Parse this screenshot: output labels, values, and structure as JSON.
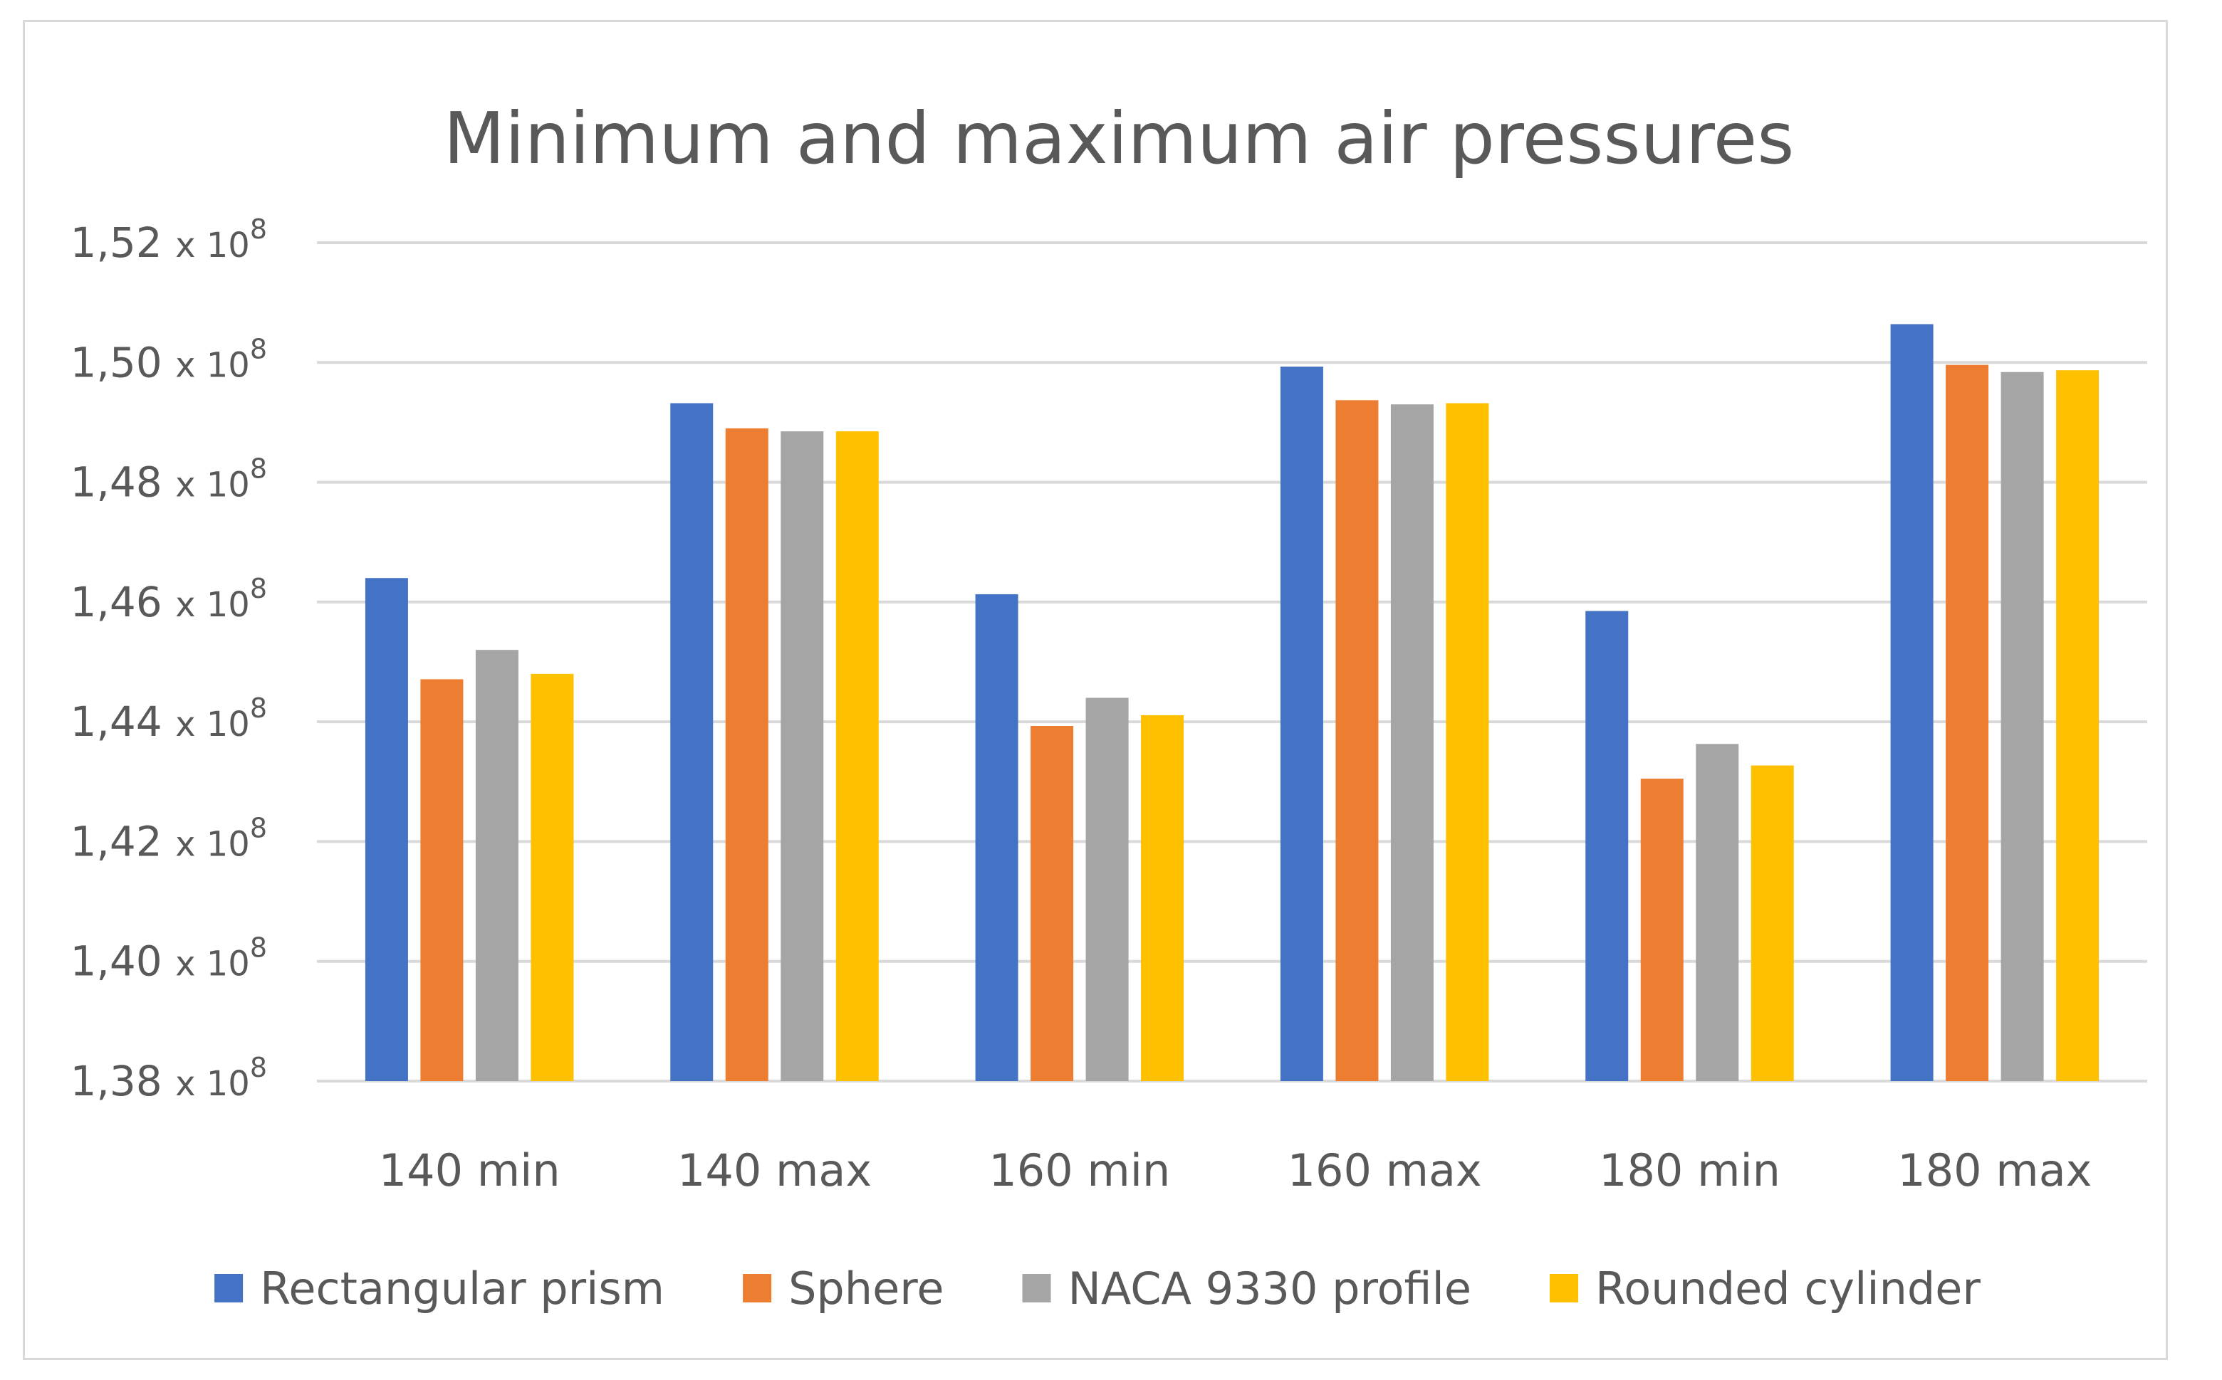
{
  "chart_data": {
    "type": "bar",
    "title": "Minimum and maximum air pressures",
    "xlabel": "",
    "ylabel": "",
    "categories": [
      "140 min",
      "140 max",
      "160 min",
      "160 max",
      "180 min",
      "180 max"
    ],
    "series": [
      {
        "name": "Rectangular prism",
        "color": "#4472c4",
        "values": [
          146400000,
          149320000,
          146130000,
          149930000,
          145850000,
          150640000
        ]
      },
      {
        "name": "Sphere",
        "color": "#ed7d31",
        "values": [
          144710000,
          148900000,
          143930000,
          149370000,
          143050000,
          149960000
        ]
      },
      {
        "name": "NACA 9330 profile",
        "color": "#a5a5a5",
        "values": [
          145200000,
          148850000,
          144400000,
          149300000,
          143630000,
          149840000
        ]
      },
      {
        "name": "Rounded cylinder",
        "color": "#ffc000",
        "values": [
          144800000,
          148850000,
          144110000,
          149320000,
          143270000,
          149870000
        ]
      }
    ],
    "ylim": [
      138000000,
      152000000
    ],
    "yticks": [
      {
        "mantissa": "1,38",
        "base": "x 10",
        "exp": "8"
      },
      {
        "mantissa": "1,40",
        "base": "x 10",
        "exp": "8"
      },
      {
        "mantissa": "1,42",
        "base": "x 10",
        "exp": "8"
      },
      {
        "mantissa": "1,44",
        "base": "x 10",
        "exp": "8"
      },
      {
        "mantissa": "1,46",
        "base": "x 10",
        "exp": "8"
      },
      {
        "mantissa": "1,48",
        "base": "x 10",
        "exp": "8"
      },
      {
        "mantissa": "1,50",
        "base": "x 10",
        "exp": "8"
      },
      {
        "mantissa": "1,52",
        "base": "x 10",
        "exp": "8"
      }
    ],
    "grid": true,
    "legend": "bottom"
  }
}
